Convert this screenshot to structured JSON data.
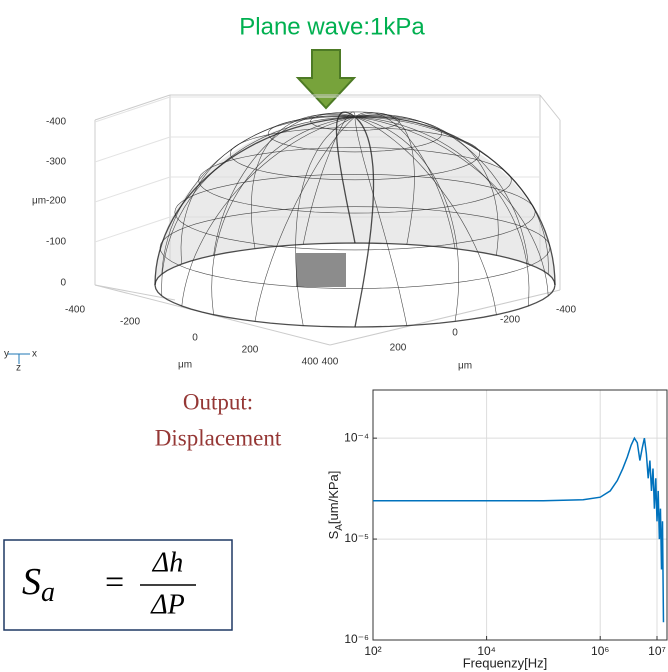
{
  "headline": "Plane wave:1kPa",
  "output_label": {
    "line1": "Output:",
    "line2": "Displacement"
  },
  "formula": {
    "lhs": "S",
    "lhs_sub": "a",
    "eq": "=",
    "num": "Δh",
    "den": "ΔP"
  },
  "dome_axes": {
    "z_ticks": [
      -400,
      -300,
      -200,
      -100,
      0
    ],
    "z_unit": "μm",
    "x_ticks": [
      -400,
      -200,
      0,
      200,
      400
    ],
    "x_unit": "μm",
    "y_ticks": [
      400,
      200,
      0,
      -200,
      -400
    ],
    "y_unit": "μm",
    "triad": {
      "y": "y",
      "x": "x",
      "z": "z"
    }
  },
  "chart_data": {
    "type": "line",
    "xlabel": "Frequenzy[Hz]",
    "ylabel": {
      "main": "S",
      "sub": "A",
      "unit": "[um/KPa]"
    },
    "log_x": true,
    "log_y": true,
    "grid": true,
    "xlim": [
      100,
      15000000
    ],
    "ylim": [
      1e-06,
      0.0003
    ],
    "xticks": [
      {
        "value": 100,
        "label": "10²"
      },
      {
        "value": 10000,
        "label": "10⁴"
      },
      {
        "value": 1000000,
        "label": "10⁶"
      },
      {
        "value": 10000000,
        "label": "10⁷"
      }
    ],
    "yticks": [
      {
        "value": 1e-06,
        "label": "10⁻⁶"
      },
      {
        "value": 1e-05,
        "label": "10⁻⁵"
      },
      {
        "value": 0.0001,
        "label": "10⁻⁴"
      }
    ],
    "series": [
      {
        "color": "#0072bd",
        "x": [
          100,
          1000,
          10000,
          100000,
          500000,
          1000000,
          1500000,
          2000000,
          2500000,
          3000000,
          3500000,
          4000000,
          4500000,
          5000000,
          5500000,
          6000000,
          6500000,
          7000000,
          7500000,
          8000000,
          8500000,
          9000000,
          9500000,
          10000000,
          10500000,
          11000000,
          11500000,
          12000000,
          12500000,
          13000000
        ],
        "values": [
          2.4e-05,
          2.4e-05,
          2.4e-05,
          2.4e-05,
          2.45e-05,
          2.6e-05,
          3e-05,
          3.8e-05,
          5e-05,
          6.5e-05,
          8.5e-05,
          0.0001,
          9e-05,
          6e-05,
          8e-05,
          0.0001,
          7e-05,
          4e-05,
          6e-05,
          3e-05,
          5e-05,
          2e-05,
          4e-05,
          1.5e-05,
          3e-05,
          1e-05,
          2e-05,
          5e-06,
          1.5e-05,
          1.5e-06
        ]
      }
    ]
  }
}
